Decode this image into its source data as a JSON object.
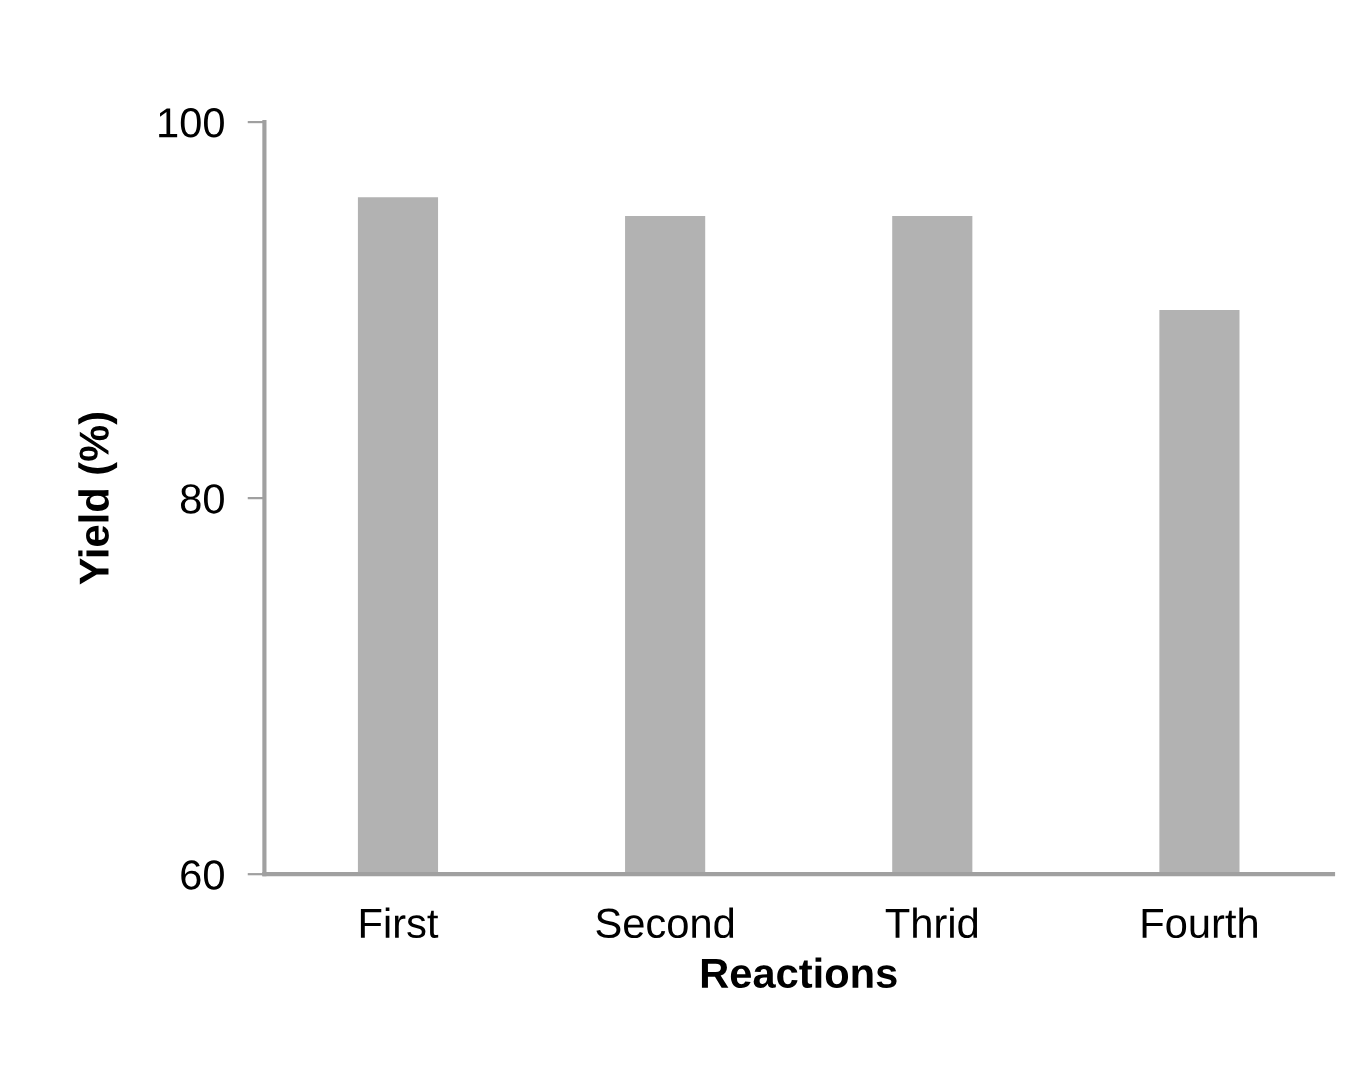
{
  "chart_data": {
    "type": "bar",
    "xlabel": "Reactions",
    "ylabel": "Yield (%)",
    "categories": [
      "First",
      "Second",
      "Thrid",
      "Fourth"
    ],
    "values": [
      96,
      95,
      95,
      90
    ],
    "color": "#b2b2b2",
    "ylim": [
      60,
      100
    ],
    "yticks": [
      60,
      80,
      100
    ],
    "grid": false,
    "legend": false
  }
}
